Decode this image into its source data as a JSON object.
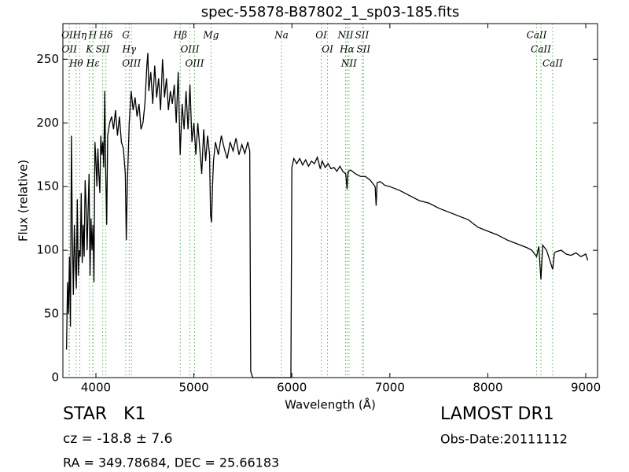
{
  "chart_data": {
    "type": "line",
    "title": "spec-55878-B87802_1_sp03-185.fits",
    "xlabel": "Wavelength (Å)",
    "ylabel": "Flux (relative)",
    "color": "#000000",
    "xlim": [
      3663,
      9120
    ],
    "xticks": [
      4000,
      5000,
      6000,
      7000,
      8000,
      9000
    ],
    "ylim": [
      0,
      278
    ],
    "yticks": [
      0,
      50,
      100,
      150,
      200,
      250
    ],
    "line_color": "#5cb85c",
    "annotations": [
      {
        "label": "OII",
        "x": 3726
      },
      {
        "label": "OII",
        "x": 3729
      },
      {
        "label": "Hθ",
        "x": 3798
      },
      {
        "label": "Hη",
        "x": 3835
      },
      {
        "label": "K",
        "x": 3934
      },
      {
        "label": "H",
        "x": 3968
      },
      {
        "label": "Hε",
        "x": 3970
      },
      {
        "label": "SII",
        "x": 4069
      },
      {
        "label": "Hδ",
        "x": 4102
      },
      {
        "label": "G",
        "x": 4305
      },
      {
        "label": "Hγ",
        "x": 4340
      },
      {
        "label": "OIII",
        "x": 4363
      },
      {
        "label": "Hβ",
        "x": 4861
      },
      {
        "label": "OIII",
        "x": 4959
      },
      {
        "label": "OIII",
        "x": 5007
      },
      {
        "label": "Mg",
        "x": 5175
      },
      {
        "label": "Na",
        "x": 5894
      },
      {
        "label": "OI",
        "x": 6300
      },
      {
        "label": "OI",
        "x": 6364
      },
      {
        "label": "NII",
        "x": 6548
      },
      {
        "label": "Hα",
        "x": 6563
      },
      {
        "label": "NII",
        "x": 6583
      },
      {
        "label": "SII",
        "x": 6716
      },
      {
        "label": "SII",
        "x": 6731
      },
      {
        "label": "CaII",
        "x": 8498
      },
      {
        "label": "CaII",
        "x": 8542
      },
      {
        "label": "CaII",
        "x": 8662
      }
    ],
    "x": [
      3700,
      3710,
      3720,
      3730,
      3740,
      3750,
      3760,
      3770,
      3780,
      3790,
      3800,
      3810,
      3820,
      3830,
      3840,
      3850,
      3860,
      3870,
      3880,
      3890,
      3900,
      3910,
      3920,
      3930,
      3940,
      3950,
      3960,
      3970,
      3980,
      3990,
      4000,
      4010,
      4020,
      4030,
      4040,
      4050,
      4060,
      4070,
      4080,
      4090,
      4100,
      4110,
      4120,
      4140,
      4160,
      4180,
      4200,
      4220,
      4240,
      4260,
      4280,
      4300,
      4310,
      4320,
      4340,
      4360,
      4380,
      4400,
      4420,
      4440,
      4460,
      4480,
      4500,
      4520,
      4530,
      4540,
      4560,
      4580,
      4600,
      4620,
      4640,
      4660,
      4680,
      4700,
      4720,
      4740,
      4760,
      4780,
      4800,
      4820,
      4840,
      4860,
      4880,
      4900,
      4920,
      4940,
      4960,
      4980,
      5000,
      5020,
      5040,
      5060,
      5080,
      5100,
      5120,
      5140,
      5160,
      5170,
      5180,
      5190,
      5200,
      5220,
      5250,
      5280,
      5310,
      5340,
      5370,
      5400,
      5430,
      5460,
      5490,
      5520,
      5550,
      5570,
      5580,
      5600,
      5800,
      5990,
      6000,
      6020,
      6050,
      6080,
      6110,
      6140,
      6170,
      6200,
      6230,
      6260,
      6290,
      6310,
      6340,
      6370,
      6400,
      6430,
      6460,
      6490,
      6520,
      6550,
      6563,
      6575,
      6600,
      6650,
      6700,
      6750,
      6800,
      6850,
      6860,
      6870,
      6900,
      6950,
      7000,
      7100,
      7200,
      7300,
      7400,
      7500,
      7600,
      7700,
      7800,
      7900,
      8000,
      8100,
      8200,
      8300,
      8400,
      8450,
      8498,
      8520,
      8542,
      8560,
      8600,
      8662,
      8680,
      8700,
      8750,
      8800,
      8850,
      8900,
      8950,
      9000,
      9020
    ],
    "values": [
      22,
      75,
      50,
      95,
      40,
      190,
      110,
      65,
      120,
      90,
      70,
      140,
      80,
      100,
      95,
      145,
      90,
      120,
      95,
      155,
      135,
      100,
      130,
      160,
      80,
      125,
      100,
      120,
      75,
      185,
      170,
      150,
      180,
      160,
      145,
      190,
      175,
      185,
      165,
      225,
      160,
      120,
      190,
      200,
      205,
      195,
      210,
      190,
      205,
      185,
      180,
      160,
      108,
      150,
      200,
      225,
      210,
      220,
      205,
      215,
      195,
      200,
      215,
      245,
      255,
      225,
      240,
      215,
      245,
      220,
      235,
      210,
      250,
      220,
      235,
      210,
      225,
      215,
      230,
      200,
      240,
      175,
      215,
      195,
      225,
      195,
      230,
      185,
      200,
      175,
      200,
      180,
      160,
      195,
      170,
      190,
      175,
      128,
      122,
      150,
      170,
      185,
      175,
      190,
      180,
      172,
      185,
      178,
      188,
      175,
      183,
      176,
      185,
      178,
      5,
      0,
      0,
      0,
      165,
      172,
      168,
      172,
      167,
      171,
      166,
      170,
      168,
      173,
      164,
      170,
      165,
      168,
      164,
      165,
      162,
      166,
      162,
      160,
      148,
      162,
      163,
      160,
      158,
      158,
      155,
      150,
      135,
      153,
      154,
      151,
      150,
      147,
      143,
      139,
      137,
      133,
      130,
      127,
      124,
      118,
      115,
      112,
      108,
      105,
      102,
      100,
      95,
      103,
      77,
      104,
      100,
      85,
      98,
      99,
      100,
      97,
      96,
      98,
      95,
      97,
      92
    ],
    "footer": {
      "class": "STAR",
      "subclass": "K1",
      "survey": "LAMOST DR1",
      "redshift": "cz = -18.8 ± 7.6",
      "date": "Obs-Date:20111112",
      "coords": "RA = 349.78684, DEC = 25.66183"
    }
  }
}
